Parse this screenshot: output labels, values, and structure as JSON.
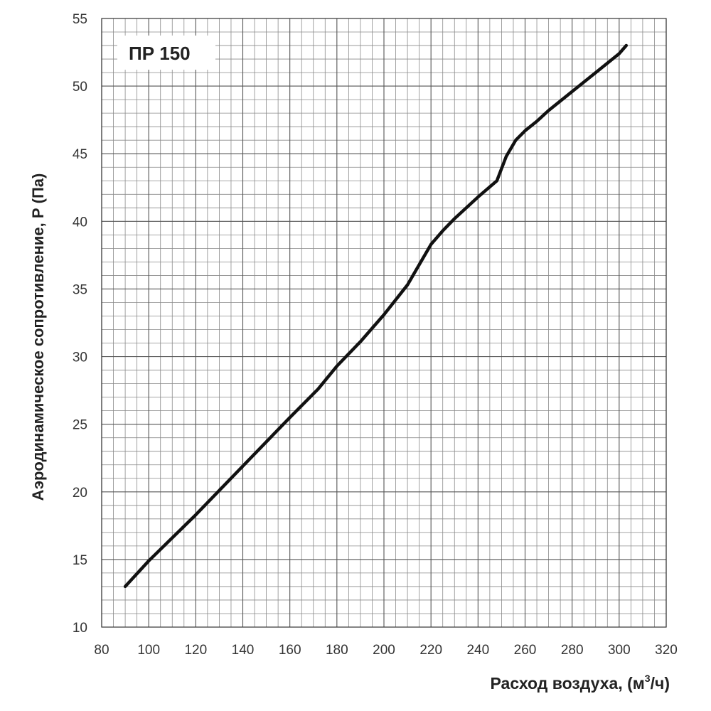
{
  "chart_data": {
    "type": "line",
    "title": "ПР 150",
    "xlabel": "Расход воздуха, (м",
    "xlabel_sup": "3",
    "xlabel_suffix": "/ч)",
    "ylabel": "Аэродинамическое сопротивление, Р (Па)",
    "xlim": [
      80,
      320
    ],
    "ylim": [
      10,
      55
    ],
    "x_ticks": [
      80,
      100,
      120,
      140,
      160,
      180,
      200,
      220,
      240,
      260,
      280,
      300,
      320
    ],
    "y_ticks": [
      10,
      15,
      20,
      25,
      30,
      35,
      40,
      45,
      50,
      55
    ],
    "x_minor_step": 5,
    "y_minor_step": 1,
    "grid": true,
    "legend": "top-left",
    "series": [
      {
        "name": "ПР 150",
        "color": "#111111",
        "x": [
          90,
          100,
          120,
          140,
          160,
          172,
          180,
          190,
          200,
          210,
          220,
          225,
          230,
          240,
          248,
          252,
          256,
          260,
          265,
          270,
          280,
          290,
          300,
          303
        ],
        "y": [
          13,
          14.9,
          18.3,
          21.9,
          25.5,
          27.6,
          29.3,
          31.1,
          33.1,
          35.3,
          38.3,
          39.3,
          40.2,
          41.8,
          43.0,
          44.8,
          46.0,
          46.7,
          47.4,
          48.2,
          49.6,
          51.0,
          52.4,
          53.0
        ]
      }
    ]
  }
}
